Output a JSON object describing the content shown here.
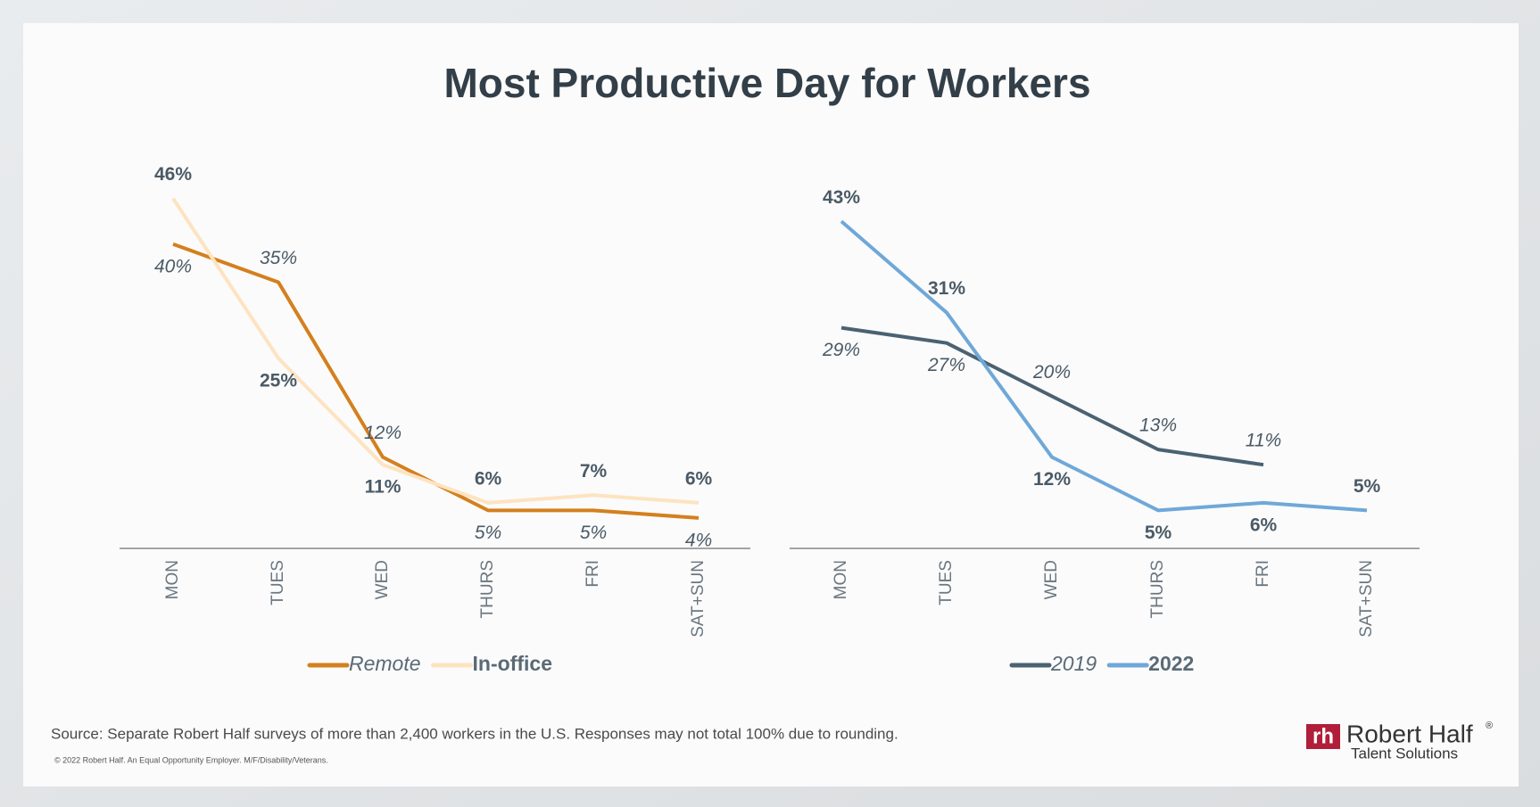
{
  "title": "Most Productive Day for Workers",
  "chart_data": [
    {
      "type": "line",
      "categories": [
        "MON",
        "TUES",
        "WED",
        "THURS",
        "FRI",
        "SAT+SUN"
      ],
      "series": [
        {
          "name": "Remote",
          "color": "#d4801e",
          "label_style": "italic",
          "values": [
            40,
            35,
            12,
            5,
            5,
            4
          ],
          "value_labels": [
            "40%",
            "35%",
            "12%",
            "5%",
            "5%",
            "4%"
          ]
        },
        {
          "name": "In-office",
          "color": "#fde3c0",
          "label_style": "bold",
          "values": [
            46,
            25,
            11,
            6,
            7,
            6
          ],
          "value_labels": [
            "46%",
            "25%",
            "11%",
            "6%",
            "7%",
            "6%"
          ]
        }
      ]
    },
    {
      "type": "line",
      "categories": [
        "MON",
        "TUES",
        "WED",
        "THURS",
        "FRI",
        "SAT+SUN"
      ],
      "series": [
        {
          "name": "2019",
          "color": "#4a6272",
          "label_style": "italic",
          "values": [
            29,
            27,
            20,
            13,
            11,
            null
          ],
          "value_labels": [
            "29%",
            "27%",
            "20%",
            "13%",
            "11%",
            null
          ]
        },
        {
          "name": "2022",
          "color": "#6fa8d8",
          "label_style": "bold",
          "values": [
            43,
            31,
            12,
            5,
            6,
            5
          ],
          "value_labels": [
            "43%",
            "31%",
            "12%",
            "5%",
            "6%",
            "5%"
          ]
        }
      ]
    }
  ],
  "footer": {
    "source": "Source: Separate Robert Half surveys of more than 2,400 workers in the U.S. Responses may not total 100% due to rounding.",
    "copyright": "© 2022 Robert Half. An Equal Opportunity Employer. M/F/Disability/Veterans."
  },
  "logo": {
    "mark": "rh",
    "name": "Robert Half",
    "registered": "®",
    "tagline": "Talent Solutions"
  }
}
